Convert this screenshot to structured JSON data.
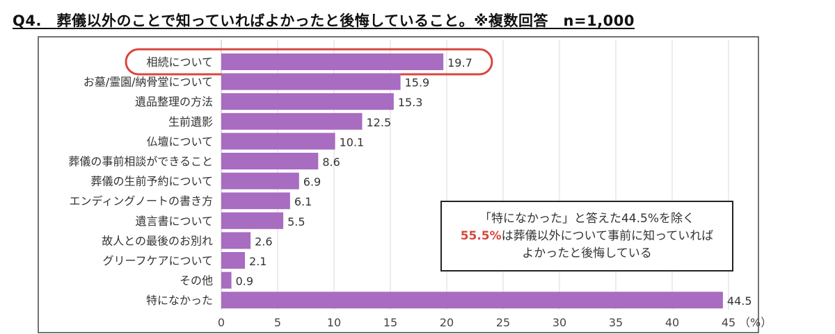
{
  "title": "Q4.　葬儀以外のことで知っていればよかったと後悔していること。※複数回答　n=1,000",
  "chart_data": {
    "type": "bar",
    "orientation": "horizontal",
    "categories": [
      "相続について",
      "お墓/霊園/納骨堂について",
      "遺品整理の方法",
      "生前遺影",
      "仏壇について",
      "葬儀の事前相談ができること",
      "葬儀の生前予約について",
      "エンディングノートの書き方",
      "遺言書について",
      "故人との最後のお別れ",
      "グリーフケアについて",
      "その他",
      "特になかった"
    ],
    "values": [
      19.7,
      15.9,
      15.3,
      12.5,
      10.1,
      8.6,
      6.9,
      6.1,
      5.5,
      2.6,
      2.1,
      0.9,
      44.5
    ],
    "value_labels": [
      "19.7",
      "15.9",
      "15.3",
      "12.5",
      "10.1",
      "8.6",
      "6.9",
      "6.1",
      "5.5",
      "2.6",
      "2.1",
      "0.9",
      "44.5"
    ],
    "xlim": [
      0,
      45
    ],
    "xticks": [
      "0",
      "5",
      "10",
      "15",
      "20",
      "25",
      "30",
      "35",
      "40",
      "45"
    ],
    "xunit": "（%）",
    "grid": true,
    "highlighted_category": "相続について",
    "colors": {
      "bar": "#a86cc1",
      "highlight": "#d9463f",
      "grid": "#d9d9d9"
    }
  },
  "annotation": {
    "line1": "「特になかった」と答えた44.5%を除く",
    "line2_highlight": "55.5%",
    "line2_rest": "は葬儀以外について事前に知っていれば",
    "line3": "よかったと後悔している"
  }
}
